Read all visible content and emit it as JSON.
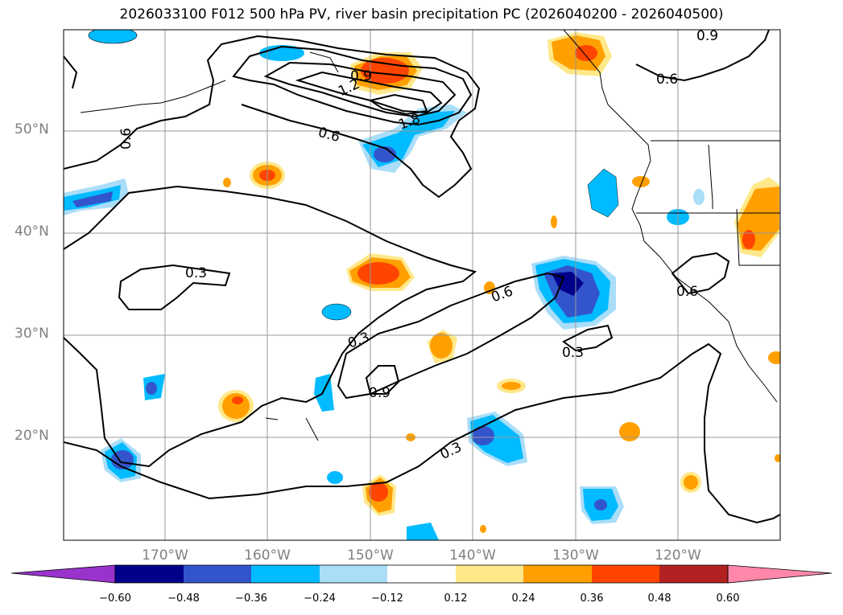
{
  "title": "2026033100 F012 500 hPa PV, river basin precipitation PC (2026040200 - 2026040500)",
  "lat_labels": [
    "50°N",
    "40°N",
    "30°N",
    "20°N"
  ],
  "lon_labels": [
    "170°W",
    "160°W",
    "150°W",
    "140°W",
    "130°W",
    "120°W"
  ],
  "contour_labels": [
    "0.9",
    "0.6",
    "1.2",
    "0.9",
    "1.8",
    "0.6",
    "0.6",
    "0.3",
    "0.6",
    "0.6",
    "0.3",
    "0.3",
    "0.9",
    "0.3"
  ],
  "colorbar": {
    "ticks": [
      "−0.60",
      "−0.48",
      "−0.36",
      "−0.24",
      "−0.12",
      "0.12",
      "0.24",
      "0.36",
      "0.48",
      "0.60"
    ],
    "colors": [
      "#9933cc",
      "#00008b",
      "#3355cc",
      "#00bbff",
      "#aaddf8",
      "#ffffff",
      "#ffe88a",
      "#ffa000",
      "#ff4500",
      "#b22222",
      "#ff88aa"
    ]
  }
}
